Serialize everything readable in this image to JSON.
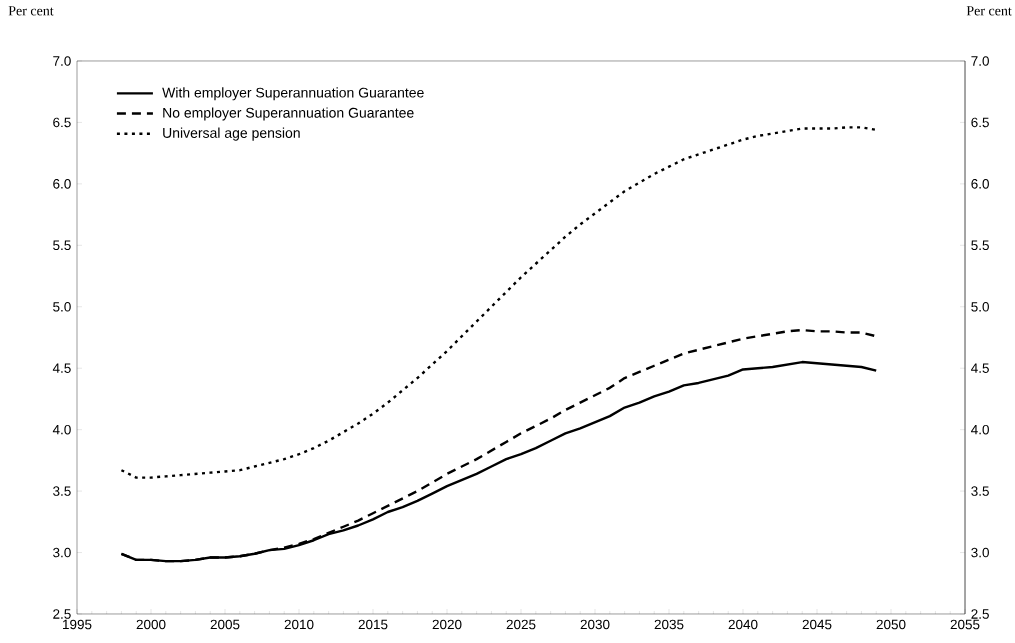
{
  "chart_data": {
    "type": "line",
    "ylabel": "Per cent",
    "y2label": "Per cent",
    "x": [
      1998,
      1999,
      2000,
      2001,
      2002,
      2003,
      2004,
      2005,
      2006,
      2007,
      2008,
      2009,
      2010,
      2011,
      2012,
      2013,
      2014,
      2015,
      2016,
      2017,
      2018,
      2019,
      2020,
      2021,
      2022,
      2023,
      2024,
      2025,
      2026,
      2027,
      2028,
      2029,
      2030,
      2031,
      2032,
      2033,
      2034,
      2035,
      2036,
      2037,
      2038,
      2039,
      2040,
      2041,
      2042,
      2043,
      2044,
      2045,
      2046,
      2047,
      2048,
      2049
    ],
    "series": [
      {
        "name": "With employer Superannuation Guarantee",
        "color": "#000000",
        "line_style": "solid",
        "values": [
          2.99,
          2.94,
          2.94,
          2.93,
          2.93,
          2.94,
          2.96,
          2.96,
          2.97,
          2.99,
          3.02,
          3.03,
          3.06,
          3.1,
          3.15,
          3.18,
          3.22,
          3.27,
          3.33,
          3.37,
          3.42,
          3.48,
          3.54,
          3.59,
          3.64,
          3.7,
          3.76,
          3.8,
          3.85,
          3.91,
          3.97,
          4.01,
          4.06,
          4.11,
          4.18,
          4.22,
          4.27,
          4.31,
          4.36,
          4.38,
          4.41,
          4.44,
          4.49,
          4.5,
          4.51,
          4.53,
          4.55,
          4.54,
          4.53,
          4.52,
          4.51,
          4.48
        ]
      },
      {
        "name": "No employer Superannuation Guarantee",
        "color": "#000000",
        "line_style": "dashed",
        "values": [
          2.99,
          2.94,
          2.94,
          2.93,
          2.93,
          2.94,
          2.96,
          2.96,
          2.97,
          2.99,
          3.02,
          3.04,
          3.07,
          3.11,
          3.16,
          3.21,
          3.26,
          3.32,
          3.38,
          3.44,
          3.5,
          3.57,
          3.64,
          3.7,
          3.76,
          3.83,
          3.9,
          3.97,
          4.03,
          4.09,
          4.16,
          4.22,
          4.28,
          4.34,
          4.42,
          4.47,
          4.52,
          4.57,
          4.62,
          4.65,
          4.68,
          4.71,
          4.74,
          4.76,
          4.78,
          4.8,
          4.81,
          4.8,
          4.8,
          4.79,
          4.79,
          4.76
        ]
      },
      {
        "name": "Universal age pension",
        "color": "#000000",
        "line_style": "dotted",
        "values": [
          3.67,
          3.61,
          3.61,
          3.62,
          3.63,
          3.64,
          3.65,
          3.66,
          3.67,
          3.7,
          3.73,
          3.76,
          3.8,
          3.85,
          3.91,
          3.98,
          4.05,
          4.13,
          4.22,
          4.32,
          4.42,
          4.53,
          4.64,
          4.76,
          4.88,
          5.0,
          5.12,
          5.24,
          5.35,
          5.46,
          5.57,
          5.67,
          5.76,
          5.85,
          5.94,
          6.01,
          6.08,
          6.14,
          6.2,
          6.24,
          6.28,
          6.32,
          6.36,
          6.39,
          6.41,
          6.43,
          6.45,
          6.45,
          6.45,
          6.46,
          6.46,
          6.44
        ]
      }
    ],
    "xlim": [
      1995,
      2055
    ],
    "xticks": [
      1995,
      2000,
      2005,
      2010,
      2015,
      2020,
      2025,
      2030,
      2035,
      2040,
      2045,
      2050,
      2055
    ],
    "ylim": [
      2.5,
      7.0
    ],
    "yticks": [
      {
        "value": 2.5,
        "label": "2.5"
      },
      {
        "value": 3.0,
        "label": "3.0"
      },
      {
        "value": 3.5,
        "label": "3.5"
      },
      {
        "value": 4.0,
        "label": "4.0"
      },
      {
        "value": 4.5,
        "label": "4.5"
      },
      {
        "value": 5.0,
        "label": "5.0"
      },
      {
        "value": 5.5,
        "label": "5.5"
      },
      {
        "value": 6.0,
        "label": "6.0"
      },
      {
        "value": 6.5,
        "label": "6.5"
      },
      {
        "value": 7.0,
        "label": "7.0"
      }
    ],
    "y2lim": [
      2.5,
      7.0
    ],
    "y2ticks": [
      {
        "value": 2.5,
        "label": "2.5"
      },
      {
        "value": 3.0,
        "label": "3.0"
      },
      {
        "value": 3.5,
        "label": "3.5"
      },
      {
        "value": 4.0,
        "label": "4.0"
      },
      {
        "value": 4.5,
        "label": "4.5"
      },
      {
        "value": 5.0,
        "label": "5.0"
      },
      {
        "value": 5.5,
        "label": "5.5"
      },
      {
        "value": 6.0,
        "label": "6.0"
      },
      {
        "value": 6.5,
        "label": "6.5"
      },
      {
        "value": 7.0,
        "label": "7.0"
      }
    ],
    "grid": false,
    "legend": "top left",
    "marker": "none"
  }
}
